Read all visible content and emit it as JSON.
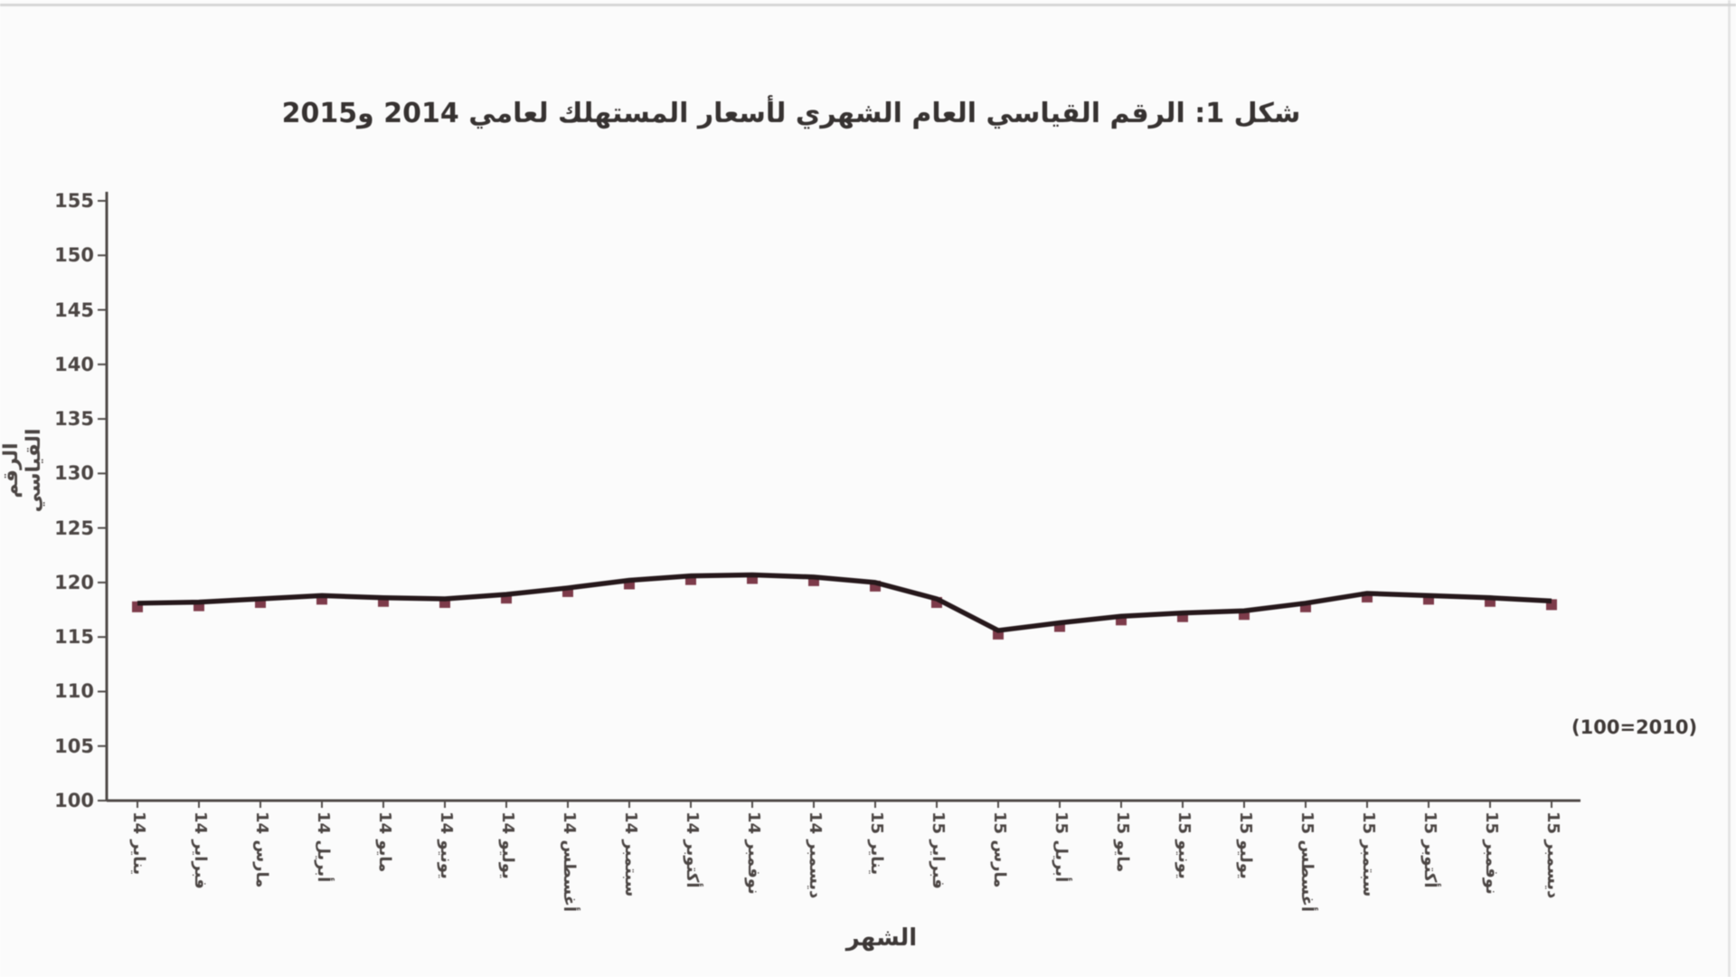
{
  "figure": {
    "title": "شكل 1: الرقم القياسي العام الشهري لأسعار المستهلك لعامي 2014 و2015",
    "y_axis_title": "الرقم القياسي",
    "x_axis_title": "الشهر",
    "base_note": "(2010=100)"
  },
  "colors": {
    "line": "#241619",
    "marker": "#7d3a49",
    "axis": "#4f4a48",
    "tick_text": "#4a4442"
  },
  "chart_data": {
    "type": "line",
    "title": "شكل 1: الرقم القياسي العام الشهري لأسعار المستهلك لعامي 2014 و2015",
    "xlabel": "الشهر",
    "ylabel": "الرقم القياسي",
    "annotation": "(2010=100)",
    "legend_position": "none",
    "grid": false,
    "ylim": [
      100,
      155
    ],
    "y_ticks": [
      100,
      105,
      110,
      115,
      120,
      125,
      130,
      135,
      140,
      145,
      150,
      155
    ],
    "categories": [
      "يناير 14",
      "فبراير 14",
      "مارس 14",
      "أبريل 14",
      "مايو 14",
      "يونيو 14",
      "يوليو 14",
      "أغسطس 14",
      "سبتمبر 14",
      "أكتوبر 14",
      "نوفمبر 14",
      "ديسمبر 14",
      "يناير 15",
      "فبراير 15",
      "مارس 15",
      "أبريل 15",
      "مايو 15",
      "يونيو 15",
      "يوليو 15",
      "أغسطس 15",
      "سبتمبر 15",
      "أكتوبر 15",
      "نوفمبر 15",
      "ديسمبر 15"
    ],
    "series": [
      {
        "name": "الرقم القياسي العام",
        "values": [
          118.1,
          118.2,
          118.5,
          118.8,
          118.6,
          118.5,
          118.9,
          119.5,
          120.2,
          120.6,
          120.7,
          120.5,
          120.0,
          118.5,
          115.6,
          116.3,
          116.9,
          117.2,
          117.4,
          118.1,
          119.0,
          118.8,
          118.6,
          118.3
        ]
      }
    ]
  }
}
